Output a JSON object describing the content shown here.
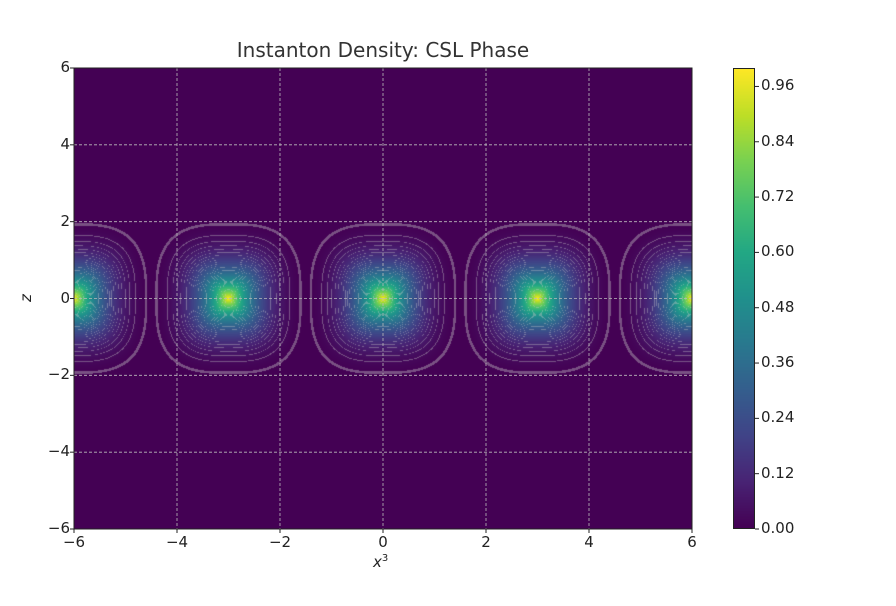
{
  "chart_data": {
    "type": "heatmap",
    "title": "Instanton Density: CSL Phase",
    "xlabel": "x",
    "xlabel_superscript": "3",
    "ylabel": "z",
    "xlim": [
      -6,
      6
    ],
    "ylim": [
      -6,
      6
    ],
    "xticks": [
      "−6",
      "−4",
      "−2",
      "0",
      "2",
      "4",
      "6"
    ],
    "yticks": [
      "6",
      "4",
      "2",
      "0",
      "−2",
      "−4",
      "−6"
    ],
    "xtick_values": [
      -6,
      -4,
      -2,
      0,
      2,
      4,
      6
    ],
    "ytick_values": [
      6,
      4,
      2,
      0,
      -2,
      -4,
      -6
    ],
    "grid": true,
    "colormap": "viridis",
    "colorbar": {
      "range": [
        0,
        1
      ],
      "ticks": [
        "0.96",
        "0.84",
        "0.72",
        "0.60",
        "0.48",
        "0.36",
        "0.24",
        "0.12",
        "0.00"
      ],
      "tick_values": [
        0.96,
        0.84,
        0.72,
        0.6,
        0.48,
        0.36,
        0.24,
        0.12,
        0.0
      ]
    },
    "peaks": [
      {
        "x": -6,
        "z": 0,
        "value": 1.0
      },
      {
        "x": -3,
        "z": 0,
        "value": 1.0
      },
      {
        "x": 0,
        "z": 0,
        "value": 1.0
      },
      {
        "x": 3,
        "z": 0,
        "value": 1.0
      },
      {
        "x": 6,
        "z": 0,
        "value": 1.0
      }
    ],
    "period_x": 3
  }
}
